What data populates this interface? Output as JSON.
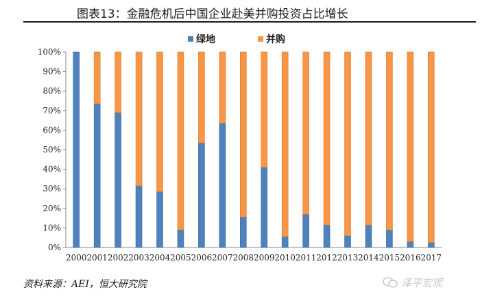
{
  "title": "图表13：金融危机后中国企业赴美并购投资占比增长",
  "source": "资料来源：AEI，恒大研究院",
  "watermark": "泽平宏观",
  "colors": {
    "greenfield": "#4f81bd",
    "mna": "#f79646"
  },
  "chart_data": {
    "type": "bar",
    "stacked": true,
    "percent": true,
    "categories": [
      "2000",
      "2001",
      "2002",
      "2003",
      "2004",
      "2005",
      "2006",
      "2007",
      "2008",
      "2009",
      "2010",
      "2011",
      "2012",
      "2013",
      "2014",
      "2015",
      "2016",
      "2017"
    ],
    "series": [
      {
        "name": "绿地",
        "values": [
          100,
          73.5,
          69,
          31.5,
          28.5,
          9,
          53.5,
          63.5,
          15.5,
          41,
          5.5,
          17,
          11.5,
          6,
          11.5,
          9,
          3,
          2.5
        ]
      },
      {
        "name": "并购",
        "values": [
          0,
          26.5,
          31,
          68.5,
          71.5,
          91,
          46.5,
          36.5,
          84.5,
          59,
          94.5,
          83,
          88.5,
          94,
          88.5,
          91,
          97,
          97.5
        ]
      }
    ],
    "yticks": [
      "0%",
      "10%",
      "20%",
      "30%",
      "40%",
      "50%",
      "60%",
      "70%",
      "80%",
      "90%",
      "100%"
    ],
    "ylim": [
      0,
      100
    ],
    "legend_position": "top-center"
  }
}
